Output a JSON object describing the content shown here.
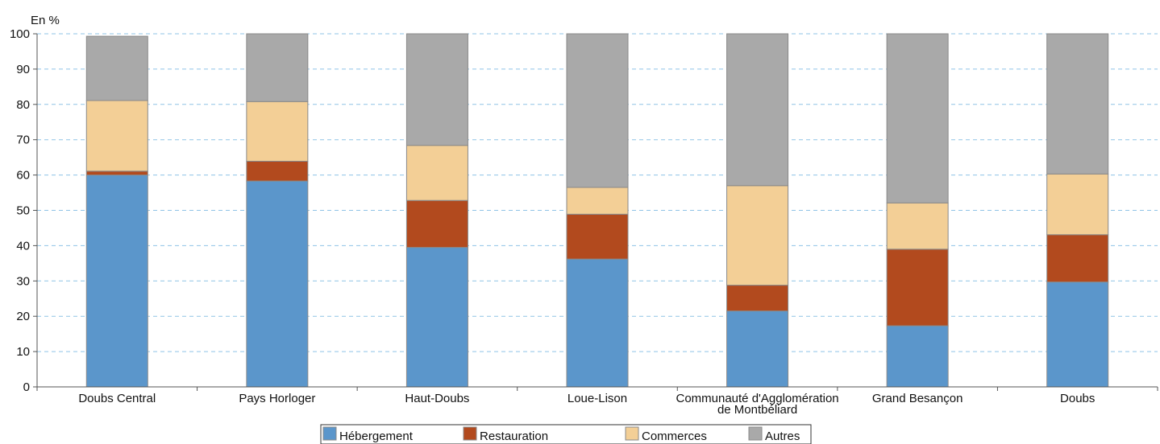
{
  "chart_data": {
    "type": "bar",
    "stacked": true,
    "unit_label": "En %",
    "title": "",
    "xlabel": "",
    "ylabel": "",
    "ylim": [
      0,
      100
    ],
    "yticks": [
      0,
      10,
      20,
      30,
      40,
      50,
      60,
      70,
      80,
      90,
      100
    ],
    "grid": true,
    "legend_position": "bottom",
    "categories": [
      [
        "Doubs Central"
      ],
      [
        "Pays Horloger"
      ],
      [
        "Haut-Doubs"
      ],
      [
        "Loue-Lison"
      ],
      [
        "Communauté d'Agglomération",
        "de Montbéliard"
      ],
      [
        "Grand Besançon"
      ],
      [
        "Doubs"
      ]
    ],
    "series": [
      {
        "name": "Hébergement",
        "color": "#5b96cb",
        "values": [
          60,
          58.3,
          39.5,
          36.2,
          21.5,
          17.3,
          29.7
        ]
      },
      {
        "name": "Restauration",
        "color": "#b24a1e",
        "values": [
          1.1,
          5.6,
          13.3,
          12.7,
          7.3,
          21.7,
          13.4
        ]
      },
      {
        "name": "Commerces",
        "color": "#f3cf96",
        "values": [
          20,
          16.9,
          15.6,
          7.6,
          28.2,
          13.1,
          17.2
        ]
      },
      {
        "name": "Autres",
        "color": "#a9a9a9",
        "values": [
          18.2,
          19.2,
          31.6,
          43.5,
          43.0,
          47.9,
          39.7
        ]
      }
    ]
  }
}
